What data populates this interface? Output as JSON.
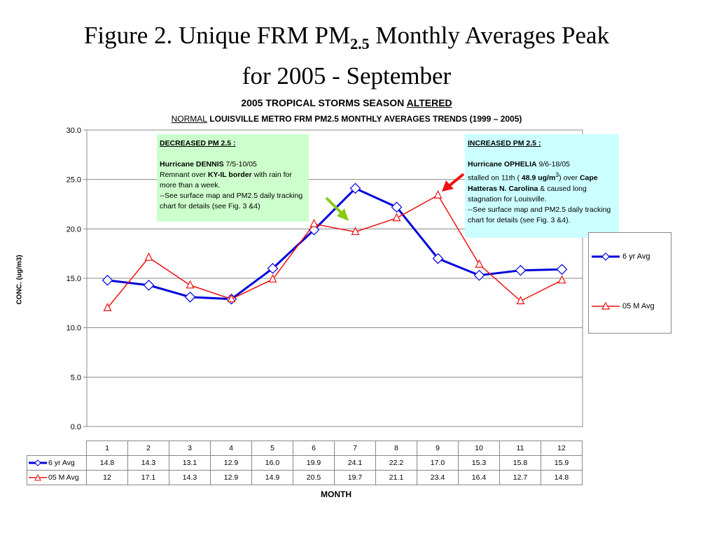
{
  "title": {
    "pre": "Figure 2.  Unique FRM PM",
    "sub": "2.5",
    "post": " Monthly Averages Peak",
    "line2": "for 2005 - September"
  },
  "chart_title": {
    "line1_pre": "2005 TROPICAL STORMS SEASON ",
    "line1_u": "ALTERED",
    "line2_u": "NORMAL",
    "line2_rest": " LOUISVILLE METRO FRM PM2.5   MONTHLY AVERAGES TRENDS (1999 – 2005)"
  },
  "annotations": {
    "decreased": {
      "heading": "DECREASED PM 2.5 :",
      "storm": "Hurricane DENNIS",
      "dates": " 7/5-10/05",
      "l1a": "Remnant over  ",
      "l1b": "KY-IL border",
      "l1c": " with rain for more than a week.",
      "l2": "--See surface map and PM2.5 daily tracking chart for details (see Fig. 3 &4)"
    },
    "increased": {
      "heading": "INCREASED PM 2.5 :",
      "storm": "Hurricane OPHELIA",
      "dates": " 9/6-18/05",
      "l1a": "stalled on 11th ( ",
      "l1b": "48.9 ug/m",
      "l1sup": "3",
      "l1c": ") over ",
      "l1d": "Cape Hatteras N. Carolina",
      "l1e": "  & caused long stagnation for Louisville.",
      "l2": "--See surface map and PM2.5 daily tracking chart for details (see Fig. 3 &4)."
    }
  },
  "colors": {
    "series1": "#0000dd",
    "series2": "#ee1111",
    "arrow_green": "#88cc11",
    "arrow_red": "#ee1111"
  },
  "chart_data": {
    "type": "line",
    "xlabel": "MONTH",
    "ylabel": "CONC. (ug/m3)",
    "ylim": [
      0,
      30
    ],
    "yticks": [
      "0.0",
      "5.0",
      "10.0",
      "15.0",
      "20.0",
      "25.0",
      "30.0"
    ],
    "categories": [
      "1",
      "2",
      "3",
      "4",
      "5",
      "6",
      "7",
      "8",
      "9",
      "10",
      "11",
      "12"
    ],
    "grid": "horizontal",
    "legend": "right",
    "series": [
      {
        "name": "6 yr Avg",
        "marker": "diamond",
        "values": [
          14.8,
          14.3,
          13.1,
          12.9,
          16.0,
          19.9,
          24.1,
          22.2,
          17.0,
          15.3,
          15.8,
          15.9
        ],
        "table": [
          "14.8",
          "14.3",
          "13.1",
          "12.9",
          "16.0",
          "19.9",
          "24.1",
          "22.2",
          "17.0",
          "15.3",
          "15.8",
          "15.9"
        ]
      },
      {
        "name": "05 M Avg",
        "marker": "triangle",
        "values": [
          12,
          17.1,
          14.3,
          12.9,
          14.9,
          20.5,
          19.7,
          21.1,
          23.4,
          16.4,
          12.7,
          14.8
        ],
        "table": [
          "12",
          "17.1",
          "14.3",
          "12.9",
          "14.9",
          "20.5",
          "19.7",
          "21.1",
          "23.4",
          "16.4",
          "12.7",
          "14.8"
        ]
      }
    ]
  }
}
